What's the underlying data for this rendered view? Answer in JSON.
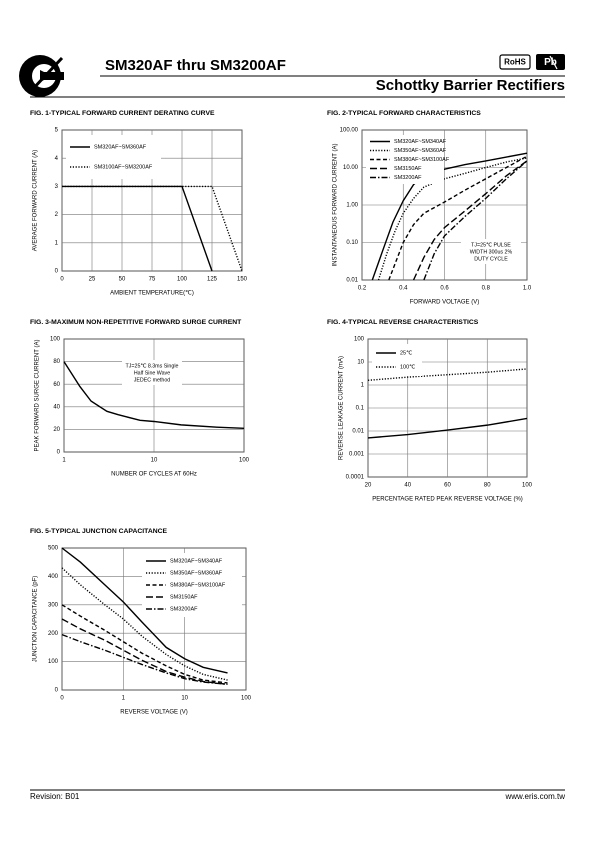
{
  "header": {
    "title": "SM320AF  thru SM3200AF",
    "subtitle": "Schottky Barrier Rectifiers",
    "badges": [
      "RoHS",
      "Pb"
    ]
  },
  "footer": {
    "revision": "Revision: B01",
    "website": "www.eris.com.tw"
  },
  "chart_data": [
    {
      "type": "line",
      "title": "FIG. 1-TYPICAL FORWARD CURRENT DERATING CURVE",
      "x_label": "AMBIENT TEMPERATURE(℃)",
      "y_label": "AVERAGE FORWARD CURRENT (A)",
      "xlim": [
        0,
        150
      ],
      "xticks": [
        0,
        25,
        50,
        75,
        100,
        125,
        150
      ],
      "ylim": [
        0,
        5
      ],
      "yticks": [
        0,
        1,
        2,
        3,
        4,
        5
      ],
      "grid": true,
      "legend": "upper left",
      "series": [
        {
          "name": "SM320AF~SM360AF",
          "color": "#000000",
          "dash": "solid",
          "x": [
            0,
            100,
            125
          ],
          "values": [
            3,
            3,
            0
          ]
        },
        {
          "name": "SM3100AF~SM3200AF",
          "color": "#000000",
          "dash": "dotted",
          "x": [
            0,
            125,
            150
          ],
          "values": [
            3,
            3,
            0
          ]
        }
      ]
    },
    {
      "type": "line",
      "title": "FIG. 2-TYPICAL FORWARD CHARACTERISTICS",
      "x_label": "FORWARD VOLTAGE (V)",
      "y_label": "INSTANTANEOUS FORWARD CURRENT (A)",
      "xlim": [
        0.2,
        1
      ],
      "xticks": [
        0.2,
        0.4,
        0.6,
        0.8,
        {
          "value": 1,
          "label": "1.0"
        }
      ],
      "yscale": "log",
      "ylim": [
        0.01,
        100
      ],
      "yticks": [
        0.01,
        {
          "value": 0.1,
          "label": "0.10"
        },
        {
          "value": 1,
          "label": "1.00"
        },
        {
          "value": 10,
          "label": "10.00"
        },
        {
          "value": 100,
          "label": "100.00"
        }
      ],
      "grid": true,
      "legend": "upper left",
      "annotation": [
        "TJ=25℃  PULSE",
        "WIDTH 300us 2%",
        "DUTY CYCLE"
      ],
      "series": [
        {
          "name": "SM320AF~SM340AF",
          "color": "#000000",
          "dash": "solid",
          "x": [
            0.25,
            0.3,
            0.35,
            0.4,
            0.45,
            0.5,
            0.6,
            0.7,
            0.8,
            0.9,
            1
          ],
          "values": [
            0.01,
            0.06,
            0.35,
            1.3,
            3.5,
            6,
            9,
            12,
            15,
            19,
            24
          ]
        },
        {
          "name": "SM350AF~SM360AF",
          "color": "#000000",
          "dash": "dotted",
          "x": [
            0.28,
            0.32,
            0.36,
            0.4,
            0.45,
            0.5,
            0.6,
            0.7,
            0.8,
            0.9,
            1
          ],
          "values": [
            0.01,
            0.05,
            0.2,
            0.6,
            1.5,
            3,
            5,
            7,
            10,
            14,
            18
          ]
        },
        {
          "name": "SM380AF~SM3100AF",
          "color": "#000000",
          "dash": "dashed",
          "x": [
            0.33,
            0.4,
            0.45,
            0.5,
            0.6,
            0.7,
            0.8,
            0.9,
            1
          ],
          "values": [
            0.01,
            0.1,
            0.3,
            0.6,
            1.2,
            2.5,
            5,
            10,
            20
          ]
        },
        {
          "name": "SM3150AF",
          "color": "#000000",
          "dash": "longdash",
          "x": [
            0.45,
            0.5,
            0.55,
            0.6,
            0.7,
            0.8,
            0.9,
            1
          ],
          "values": [
            0.01,
            0.04,
            0.12,
            0.25,
            0.7,
            2,
            6,
            15
          ]
        },
        {
          "name": "SM3200AF",
          "color": "#000000",
          "dash": "dashdot",
          "x": [
            0.5,
            0.55,
            0.6,
            0.7,
            0.8,
            0.9,
            1
          ],
          "values": [
            0.01,
            0.05,
            0.15,
            0.5,
            1.5,
            5,
            15
          ]
        }
      ]
    },
    {
      "type": "line",
      "title": "FIG. 3-MAXIMUM NON-REPETITIVE FORWARD SURGE CURRENT",
      "x_label": "NUMBER OF CYCLES AT 60Hz",
      "y_label": "PEAK FORWARD SURGE CURRENT (A)",
      "xscale": "log",
      "xlim": [
        1,
        100
      ],
      "xticks": [
        1,
        10,
        100
      ],
      "ylim": [
        0,
        100
      ],
      "yticks": [
        0,
        20,
        40,
        60,
        80,
        100
      ],
      "grid": true,
      "annotation": [
        "TJ=25℃  8.3ms Single",
        "Half  Sine Wave",
        "JEDEC method"
      ],
      "series": [
        {
          "color": "#000000",
          "dash": "solid",
          "x": [
            1,
            1.5,
            2,
            3,
            4,
            5,
            7,
            10,
            20,
            50,
            100
          ],
          "values": [
            80,
            58,
            45,
            36,
            33,
            31,
            28,
            27,
            24,
            22,
            21
          ]
        }
      ]
    },
    {
      "type": "line",
      "title": "FIG. 4-TYPICAL REVERSE CHARACTERISTICS",
      "x_label": "PERCENTAGE RATED PEAK REVERSE VOLTAGE (%)",
      "y_label": "REVERSE LEAKAGE CURRENT (mA)",
      "xlim": [
        20,
        100
      ],
      "xticks": [
        20,
        40,
        60,
        80,
        100
      ],
      "yscale": "log",
      "ylim": [
        0.0001,
        100
      ],
      "yticks": [
        0.0001,
        0.001,
        0.01,
        0.1,
        1,
        10,
        100
      ],
      "grid": true,
      "legend": "upper left",
      "series": [
        {
          "name": "25℃",
          "color": "#000000",
          "dash": "solid",
          "x": [
            20,
            40,
            60,
            80,
            100
          ],
          "values": [
            0.005,
            0.007,
            0.011,
            0.018,
            0.035
          ]
        },
        {
          "name": "100℃",
          "color": "#000000",
          "dash": "dotted",
          "x": [
            20,
            40,
            60,
            80,
            100
          ],
          "values": [
            1.6,
            2.2,
            2.8,
            3.6,
            5
          ]
        }
      ]
    },
    {
      "type": "line",
      "title": "FIG. 5-TYPICAL JUNCTION CAPACITANCE",
      "x_label": "REVERSE VOLTAGE (V)",
      "y_label": "JUNCTION CAPACITANCE (pF)",
      "xscale": "log",
      "xlim": [
        0.1,
        100
      ],
      "xticks": [
        {
          "value": 0.1,
          "label": "0"
        },
        1,
        10,
        100
      ],
      "ylim": [
        0,
        500
      ],
      "yticks": [
        0,
        100,
        200,
        300,
        400,
        500
      ],
      "grid": true,
      "legend": "upper right",
      "series": [
        {
          "name": "SM320AF~SM340AF",
          "color": "#000000",
          "dash": "solid",
          "x": [
            0.1,
            0.2,
            0.5,
            1,
            2,
            5,
            10,
            20,
            50
          ],
          "values": [
            500,
            450,
            370,
            310,
            240,
            150,
            110,
            80,
            60
          ]
        },
        {
          "name": "SM350AF~SM360AF",
          "color": "#000000",
          "dash": "dotted",
          "x": [
            0.1,
            0.2,
            0.5,
            1,
            2,
            5,
            10,
            20,
            50
          ],
          "values": [
            430,
            370,
            300,
            250,
            190,
            125,
            85,
            55,
            35
          ]
        },
        {
          "name": "SM380AF~SM3100AF",
          "color": "#000000",
          "dash": "dashed",
          "x": [
            0.1,
            0.2,
            0.5,
            1,
            2,
            5,
            10,
            20,
            50
          ],
          "values": [
            300,
            260,
            210,
            170,
            130,
            85,
            55,
            35,
            25
          ]
        },
        {
          "name": "SM3150AF",
          "color": "#000000",
          "dash": "longdash",
          "x": [
            0.1,
            0.2,
            0.5,
            1,
            2,
            5,
            10,
            20,
            50
          ],
          "values": [
            250,
            215,
            175,
            140,
            105,
            65,
            45,
            30,
            20
          ]
        },
        {
          "name": "SM3200AF",
          "color": "#000000",
          "dash": "dashdot",
          "x": [
            0.1,
            0.2,
            0.5,
            1,
            2,
            5,
            10,
            20,
            50
          ],
          "values": [
            195,
            170,
            140,
            115,
            90,
            60,
            40,
            28,
            20
          ]
        }
      ]
    }
  ]
}
